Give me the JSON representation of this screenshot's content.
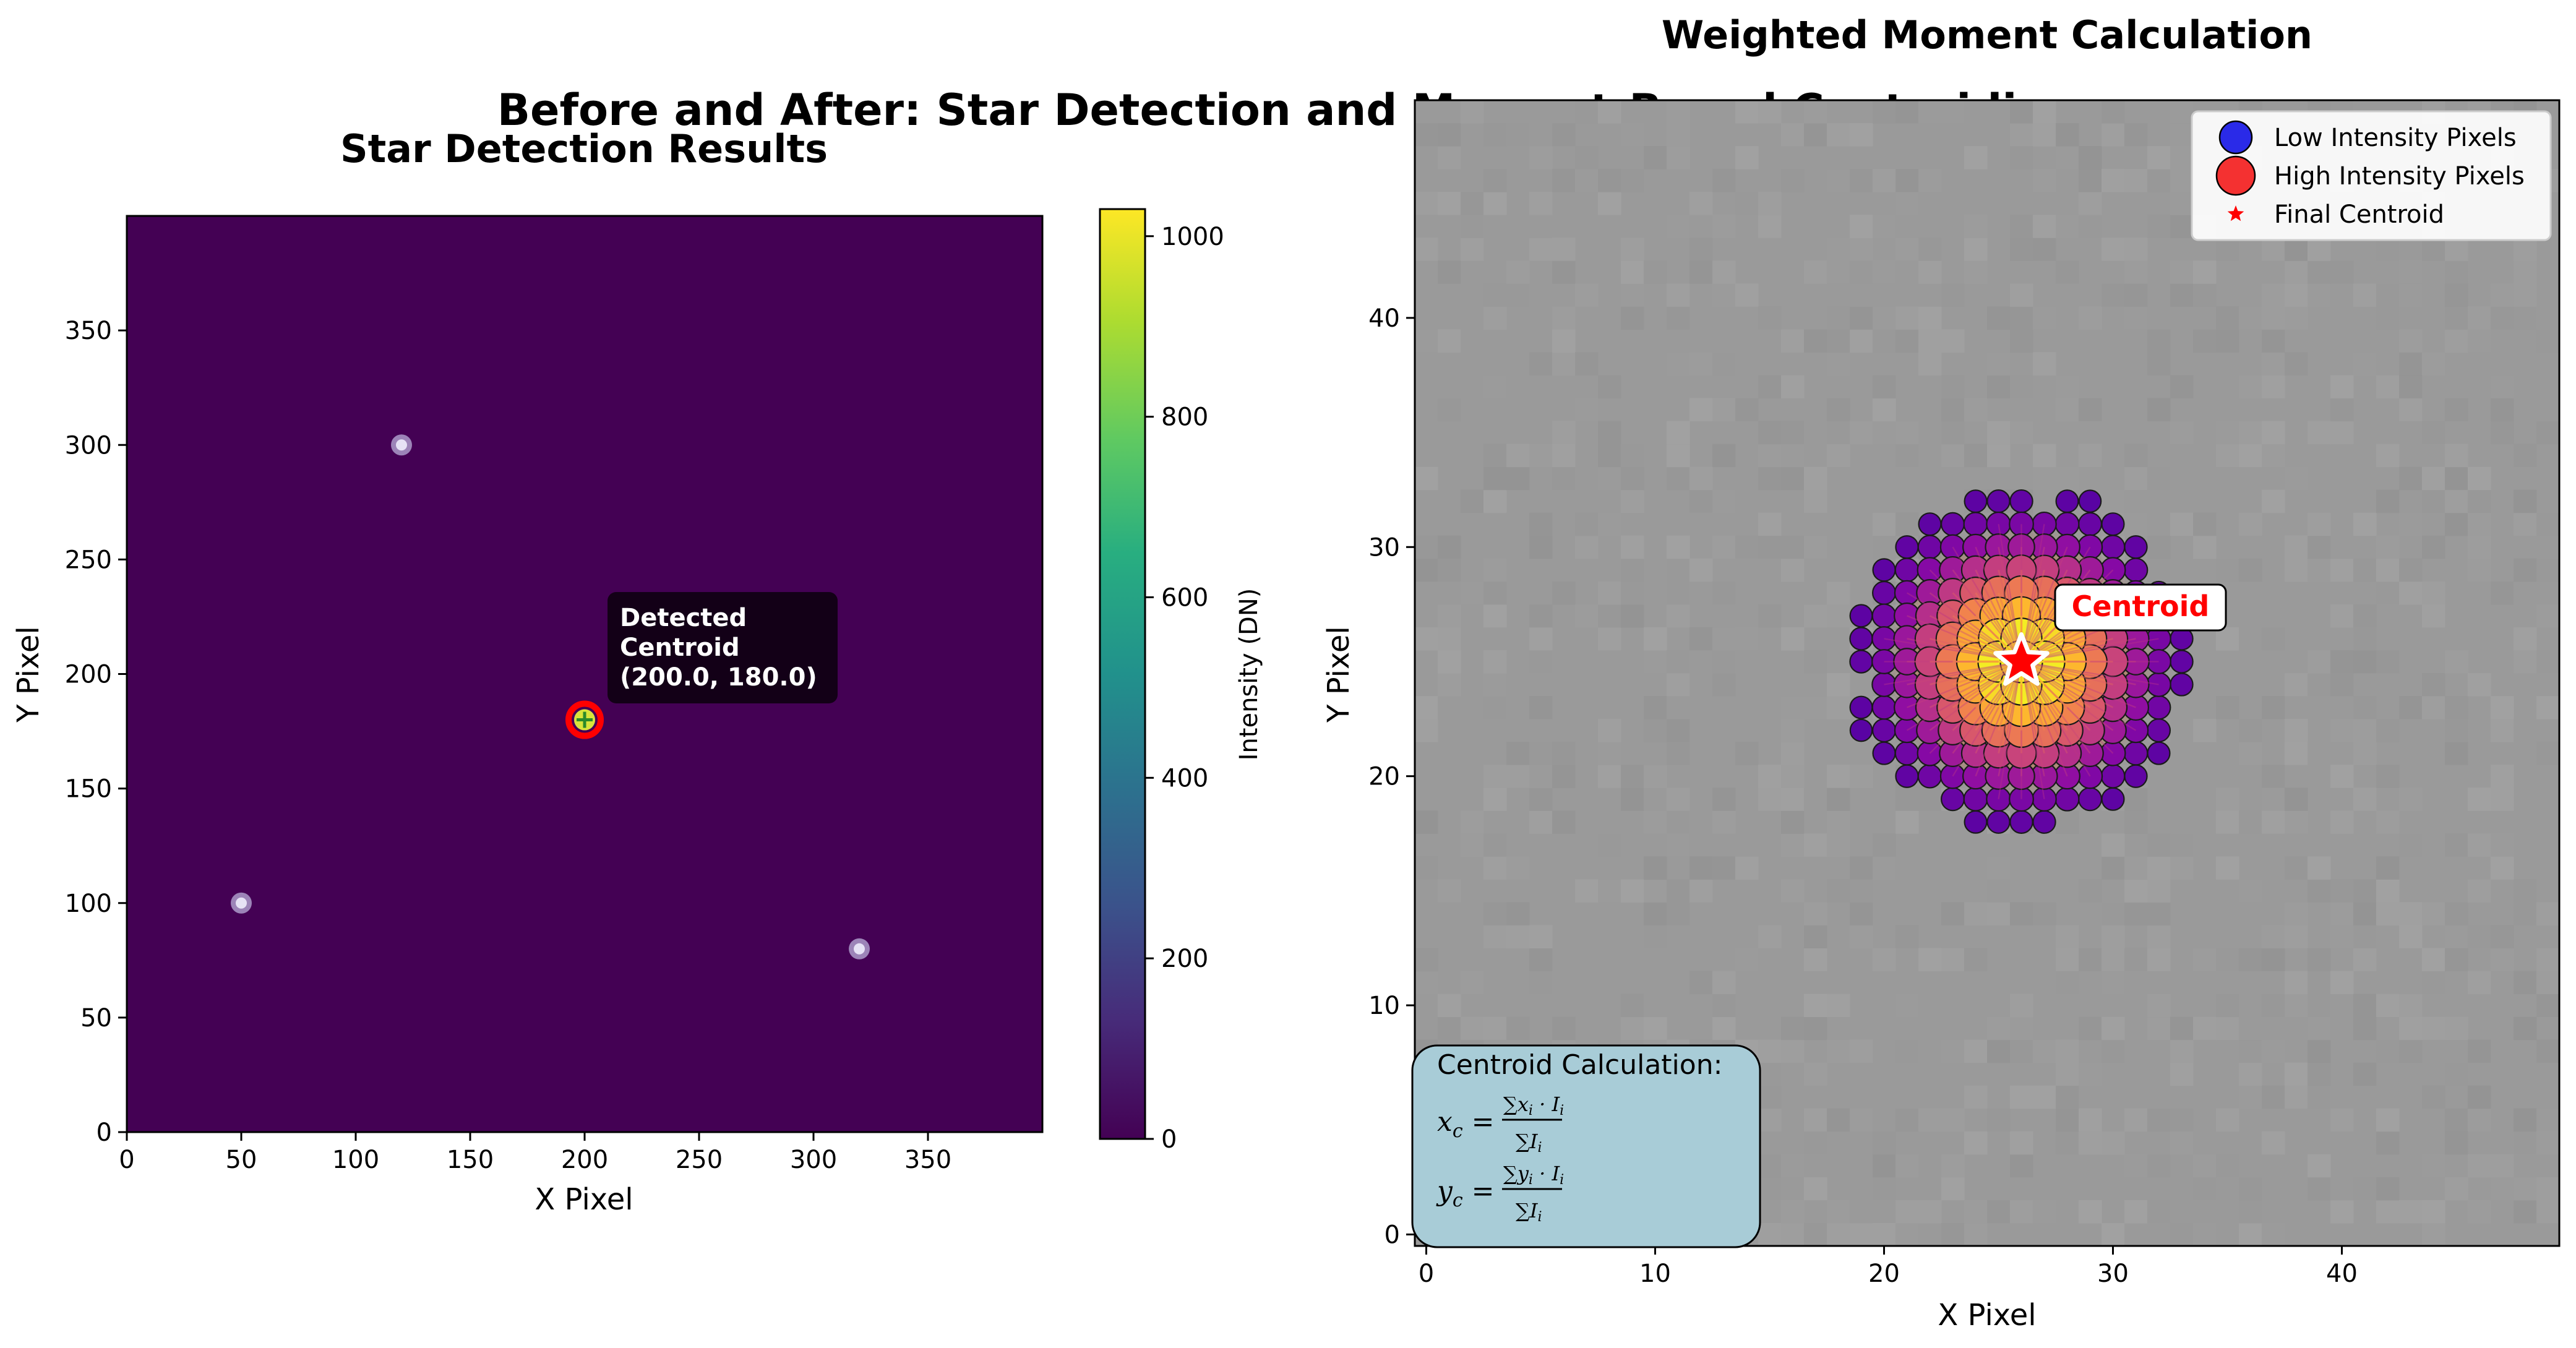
{
  "figure": {
    "suptitle": "Before and After: Star Detection and Moment-Based Centroiding"
  },
  "chart_data": [
    {
      "type": "heatmap",
      "title": "Star Detection Results",
      "xlabel": "X Pixel",
      "ylabel": "Y Pixel",
      "xlim": [
        0,
        400
      ],
      "ylim": [
        0,
        400
      ],
      "xticks": [
        0,
        50,
        100,
        150,
        200,
        250,
        300,
        350
      ],
      "yticks": [
        0,
        50,
        100,
        150,
        200,
        250,
        300,
        350
      ],
      "colormap": "viridis",
      "background_color": "#440154",
      "colorbar": {
        "label": "Intensity (DN)",
        "range": [
          0,
          1030
        ],
        "ticks": [
          0,
          200,
          400,
          600,
          800,
          1000
        ]
      },
      "stars": [
        {
          "x": 120,
          "y": 300
        },
        {
          "x": 50,
          "y": 100
        },
        {
          "x": 320,
          "y": 80
        },
        {
          "x": 200,
          "y": 180
        }
      ],
      "detected_centroid": {
        "x": 200.0,
        "y": 180.0,
        "marker_color": "#ff0000"
      },
      "annotation": {
        "line1": "Detected",
        "line2": "Centroid",
        "line3": "(200.0, 180.0)"
      }
    },
    {
      "type": "scatter",
      "title": "Weighted Moment Calculation",
      "xlabel": "X Pixel",
      "ylabel": "Y Pixel",
      "xlim": [
        -0.5,
        49.5
      ],
      "ylim": [
        -0.5,
        49.5
      ],
      "xticks": [
        0,
        10,
        20,
        30,
        40
      ],
      "yticks": [
        0,
        10,
        20,
        30,
        40
      ],
      "background_color": "#9a9a9a",
      "colormap": "plasma",
      "star_center": {
        "x": 26,
        "y": 25
      },
      "pixel_radius": 7.2,
      "final_centroid": {
        "x": 26,
        "y": 25,
        "label": "Centroid",
        "color": "#ff0000"
      },
      "legend": {
        "position": "upper right",
        "entries": [
          {
            "label": "Low Intensity Pixels",
            "color": "#2a2ae8"
          },
          {
            "label": "High Intensity Pixels",
            "color": "#f43131"
          },
          {
            "label": "Final Centroid",
            "color": "#ff0000"
          }
        ]
      },
      "formula_box": {
        "heading": "Centroid Calculation:",
        "xc": "x",
        "yc": "y"
      }
    }
  ]
}
